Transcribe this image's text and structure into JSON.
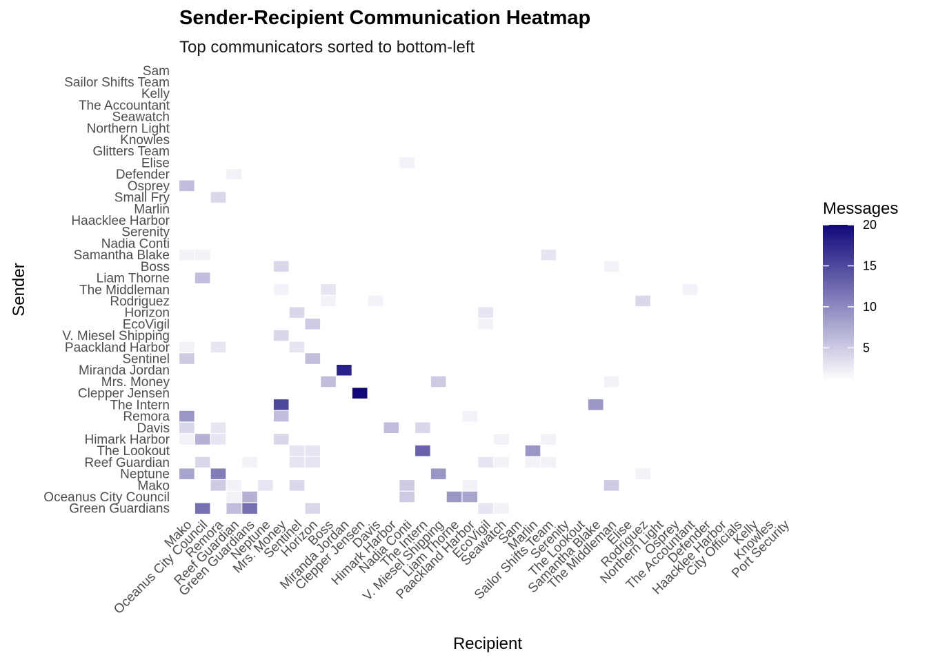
{
  "chart_data": {
    "type": "heatmap",
    "title": "Sender-Recipient Communication Heatmap",
    "subtitle": "Top communicators sorted to bottom-left",
    "xlabel": "Recipient",
    "ylabel": "Sender",
    "legend_title": "Messages",
    "legend_placement": "right",
    "legend_ticks": [
      5,
      10,
      15,
      20
    ],
    "color_range": [
      1,
      20
    ],
    "color_low": "#ffffff",
    "color_high": "#10087a",
    "grid": false,
    "x_categories": [
      "Mako",
      "Oceanus City Council",
      "Remora",
      "Reef Guardian",
      "Green Guardians",
      "Neptune",
      "Mrs. Money",
      "Sentinel",
      "Horizon",
      "Boss",
      "Miranda Jordan",
      "Clepper Jensen",
      "Davis",
      "Himark Harbor",
      "Nadia Conti",
      "The Intern",
      "V. Miesel Shipping",
      "Liam Thorne",
      "Paackland Harbor",
      "EcoVigil",
      "Seawatch",
      "Sam",
      "Marlin",
      "Sailor Shifts Team",
      "Serenity",
      "The Lookout",
      "Samantha Blake",
      "The Middleman",
      "Elise",
      "Rodriguez",
      "Northern Light",
      "Osprey",
      "The Accountant",
      "Defender",
      "Haacklee Harbor",
      "City Officials",
      "Kelly",
      "Knowles",
      "Port Security"
    ],
    "y_categories": [
      "Green Guardians",
      "Oceanus City Council",
      "Mako",
      "Neptune",
      "Reef Guardian",
      "The Lookout",
      "Himark Harbor",
      "Davis",
      "Remora",
      "The Intern",
      "Clepper Jensen",
      "Mrs. Money",
      "Miranda Jordan",
      "Sentinel",
      "Paackland Harbor",
      "V. Miesel Shipping",
      "EcoVigil",
      "Horizon",
      "Rodriguez",
      "The Middleman",
      "Liam Thorne",
      "Boss",
      "Samantha Blake",
      "Nadia Conti",
      "Serenity",
      "Haacklee Harbor",
      "Marlin",
      "Small Fry",
      "Osprey",
      "Defender",
      "Elise",
      "Glitters Team",
      "Knowles",
      "Northern Light",
      "Seawatch",
      "The Accountant",
      "Kelly",
      "Sailor Shifts Team",
      "Sam"
    ],
    "cells": [
      {
        "sender": "Green Guardians",
        "recipient": "Mako",
        "value": 1
      },
      {
        "sender": "Green Guardians",
        "recipient": "Oceanus City Council",
        "value": 12
      },
      {
        "sender": "Green Guardians",
        "recipient": "Reef Guardian",
        "value": 6
      },
      {
        "sender": "Green Guardians",
        "recipient": "Green Guardians",
        "value": 12
      },
      {
        "sender": "Green Guardians",
        "recipient": "Horizon",
        "value": 4
      },
      {
        "sender": "Green Guardians",
        "recipient": "EcoVigil",
        "value": 3
      },
      {
        "sender": "Green Guardians",
        "recipient": "Seawatch",
        "value": 2
      },
      {
        "sender": "Oceanus City Council",
        "recipient": "Mako",
        "value": 1
      },
      {
        "sender": "Oceanus City Council",
        "recipient": "Reef Guardian",
        "value": 2
      },
      {
        "sender": "Oceanus City Council",
        "recipient": "Green Guardians",
        "value": 7
      },
      {
        "sender": "Oceanus City Council",
        "recipient": "Nadia Conti",
        "value": 5
      },
      {
        "sender": "Oceanus City Council",
        "recipient": "Liam Thorne",
        "value": 9
      },
      {
        "sender": "Oceanus City Council",
        "recipient": "Paackland Harbor",
        "value": 8
      },
      {
        "sender": "Oceanus City Council",
        "recipient": "The Middleman",
        "value": 1
      },
      {
        "sender": "Mako",
        "recipient": "Remora",
        "value": 5
      },
      {
        "sender": "Mako",
        "recipient": "Reef Guardian",
        "value": 2
      },
      {
        "sender": "Mako",
        "recipient": "Neptune",
        "value": 3
      },
      {
        "sender": "Mako",
        "recipient": "Sentinel",
        "value": 4
      },
      {
        "sender": "Mako",
        "recipient": "Boss",
        "value": 1
      },
      {
        "sender": "Mako",
        "recipient": "Nadia Conti",
        "value": 5
      },
      {
        "sender": "Mako",
        "recipient": "Paackland Harbor",
        "value": 2
      },
      {
        "sender": "Mako",
        "recipient": "The Middleman",
        "value": 5
      },
      {
        "sender": "Mako",
        "recipient": "The Accountant",
        "value": 1
      },
      {
        "sender": "Neptune",
        "recipient": "Mako",
        "value": 8
      },
      {
        "sender": "Neptune",
        "recipient": "Remora",
        "value": 11
      },
      {
        "sender": "Neptune",
        "recipient": "Davis",
        "value": 1
      },
      {
        "sender": "Neptune",
        "recipient": "V. Miesel Shipping",
        "value": 9
      },
      {
        "sender": "Neptune",
        "recipient": "Rodriguez",
        "value": 2
      },
      {
        "sender": "Reef Guardian",
        "recipient": "Mako",
        "value": 1
      },
      {
        "sender": "Reef Guardian",
        "recipient": "Oceanus City Council",
        "value": 4
      },
      {
        "sender": "Reef Guardian",
        "recipient": "Green Guardians",
        "value": 2
      },
      {
        "sender": "Reef Guardian",
        "recipient": "Sentinel",
        "value": 3
      },
      {
        "sender": "Reef Guardian",
        "recipient": "Horizon",
        "value": 3
      },
      {
        "sender": "Reef Guardian",
        "recipient": "Paackland Harbor",
        "value": 1
      },
      {
        "sender": "Reef Guardian",
        "recipient": "EcoVigil",
        "value": 3
      },
      {
        "sender": "Reef Guardian",
        "recipient": "Seawatch",
        "value": 2
      },
      {
        "sender": "Reef Guardian",
        "recipient": "Marlin",
        "value": 2
      },
      {
        "sender": "Reef Guardian",
        "recipient": "Sailor Shifts Team",
        "value": 2
      },
      {
        "sender": "Reef Guardian",
        "recipient": "Haacklee Harbor",
        "value": 1
      },
      {
        "sender": "The Lookout",
        "recipient": "Neptune",
        "value": 1
      },
      {
        "sender": "The Lookout",
        "recipient": "Sentinel",
        "value": 3
      },
      {
        "sender": "The Lookout",
        "recipient": "Horizon",
        "value": 3
      },
      {
        "sender": "The Lookout",
        "recipient": "The Intern",
        "value": 13
      },
      {
        "sender": "The Lookout",
        "recipient": "Marlin",
        "value": 9
      },
      {
        "sender": "Himark Harbor",
        "recipient": "Mako",
        "value": 2
      },
      {
        "sender": "Himark Harbor",
        "recipient": "Oceanus City Council",
        "value": 7
      },
      {
        "sender": "Himark Harbor",
        "recipient": "Remora",
        "value": 3
      },
      {
        "sender": "Himark Harbor",
        "recipient": "Mrs. Money",
        "value": 4
      },
      {
        "sender": "Himark Harbor",
        "recipient": "Seawatch",
        "value": 2
      },
      {
        "sender": "Himark Harbor",
        "recipient": "Marlin",
        "value": 1
      },
      {
        "sender": "Himark Harbor",
        "recipient": "Sailor Shifts Team",
        "value": 2
      },
      {
        "sender": "Davis",
        "recipient": "Mako",
        "value": 4
      },
      {
        "sender": "Davis",
        "recipient": "Remora",
        "value": 3
      },
      {
        "sender": "Davis",
        "recipient": "Himark Harbor",
        "value": 6
      },
      {
        "sender": "Davis",
        "recipient": "The Intern",
        "value": 4
      },
      {
        "sender": "Davis",
        "recipient": "V. Miesel Shipping",
        "value": 1
      },
      {
        "sender": "Remora",
        "recipient": "Mako",
        "value": 9
      },
      {
        "sender": "Remora",
        "recipient": "Mrs. Money",
        "value": 6
      },
      {
        "sender": "Remora",
        "recipient": "Paackland Harbor",
        "value": 2
      },
      {
        "sender": "Remora",
        "recipient": "Sailor Shifts Team",
        "value": 1
      },
      {
        "sender": "The Intern",
        "recipient": "Mrs. Money",
        "value": 15
      },
      {
        "sender": "The Intern",
        "recipient": "Samantha Blake",
        "value": 9
      },
      {
        "sender": "Clepper Jensen",
        "recipient": "Clepper Jensen",
        "value": 20
      },
      {
        "sender": "Mrs. Money",
        "recipient": "Mrs. Money",
        "value": 1
      },
      {
        "sender": "Mrs. Money",
        "recipient": "Boss",
        "value": 6
      },
      {
        "sender": "Mrs. Money",
        "recipient": "V. Miesel Shipping",
        "value": 5
      },
      {
        "sender": "Mrs. Money",
        "recipient": "The Middleman",
        "value": 2
      },
      {
        "sender": "Miranda Jordan",
        "recipient": "Miranda Jordan",
        "value": 18
      },
      {
        "sender": "Sentinel",
        "recipient": "Mako",
        "value": 5
      },
      {
        "sender": "Sentinel",
        "recipient": "Oceanus City Council",
        "value": 1
      },
      {
        "sender": "Sentinel",
        "recipient": "Green Guardians",
        "value": 1
      },
      {
        "sender": "Sentinel",
        "recipient": "Horizon",
        "value": 6
      },
      {
        "sender": "Paackland Harbor",
        "recipient": "Mako",
        "value": 2
      },
      {
        "sender": "Paackland Harbor",
        "recipient": "Oceanus City Council",
        "value": 1
      },
      {
        "sender": "Paackland Harbor",
        "recipient": "Remora",
        "value": 3
      },
      {
        "sender": "Paackland Harbor",
        "recipient": "Reef Guardian",
        "value": 1
      },
      {
        "sender": "Paackland Harbor",
        "recipient": "Sentinel",
        "value": 3
      },
      {
        "sender": "V. Miesel Shipping",
        "recipient": "Remora",
        "value": 1
      },
      {
        "sender": "V. Miesel Shipping",
        "recipient": "Mrs. Money",
        "value": 4
      },
      {
        "sender": "V. Miesel Shipping",
        "recipient": "Liam Thorne",
        "value": 1
      },
      {
        "sender": "EcoVigil",
        "recipient": "Reef Guardian",
        "value": 1
      },
      {
        "sender": "EcoVigil",
        "recipient": "Sentinel",
        "value": 1
      },
      {
        "sender": "EcoVigil",
        "recipient": "Horizon",
        "value": 5
      },
      {
        "sender": "EcoVigil",
        "recipient": "Liam Thorne",
        "value": 1
      },
      {
        "sender": "EcoVigil",
        "recipient": "EcoVigil",
        "value": 2
      },
      {
        "sender": "Horizon",
        "recipient": "Green Guardians",
        "value": 1
      },
      {
        "sender": "Horizon",
        "recipient": "Sentinel",
        "value": 4
      },
      {
        "sender": "Horizon",
        "recipient": "EcoVigil",
        "value": 3
      },
      {
        "sender": "Horizon",
        "recipient": "Seawatch",
        "value": 1
      },
      {
        "sender": "Rodriguez",
        "recipient": "Boss",
        "value": 2
      },
      {
        "sender": "Rodriguez",
        "recipient": "Davis",
        "value": 2
      },
      {
        "sender": "Rodriguez",
        "recipient": "Rodriguez",
        "value": 4
      },
      {
        "sender": "The Middleman",
        "recipient": "Mrs. Money",
        "value": 2
      },
      {
        "sender": "The Middleman",
        "recipient": "Boss",
        "value": 3
      },
      {
        "sender": "The Middleman",
        "recipient": "Liam Thorne",
        "value": 1
      },
      {
        "sender": "The Middleman",
        "recipient": "The Accountant",
        "value": 2
      },
      {
        "sender": "Liam Thorne",
        "recipient": "Oceanus City Council",
        "value": 6
      },
      {
        "sender": "Liam Thorne",
        "recipient": "Nadia Conti",
        "value": 1
      },
      {
        "sender": "Boss",
        "recipient": "Mrs. Money",
        "value": 4
      },
      {
        "sender": "Boss",
        "recipient": "The Middleman",
        "value": 2
      },
      {
        "sender": "Samantha Blake",
        "recipient": "Mako",
        "value": 2
      },
      {
        "sender": "Samantha Blake",
        "recipient": "Oceanus City Council",
        "value": 2
      },
      {
        "sender": "Samantha Blake",
        "recipient": "Sailor Shifts Team",
        "value": 3
      },
      {
        "sender": "Nadia Conti",
        "recipient": "Neptune",
        "value": 1
      },
      {
        "sender": "Nadia Conti",
        "recipient": "Liam Thorne",
        "value": 1
      },
      {
        "sender": "Serenity",
        "recipient": "Mako",
        "value": 1
      },
      {
        "sender": "Serenity",
        "recipient": "Reef Guardian",
        "value": 1
      },
      {
        "sender": "Serenity",
        "recipient": "Neptune",
        "value": 1
      },
      {
        "sender": "Serenity",
        "recipient": "Himark Harbor",
        "value": 1
      },
      {
        "sender": "Haacklee Harbor",
        "recipient": "Oceanus City Council",
        "value": 1
      },
      {
        "sender": "Marlin",
        "recipient": "Remora",
        "value": 1
      },
      {
        "sender": "Marlin",
        "recipient": "Himark Harbor",
        "value": 1
      },
      {
        "sender": "Small Fry",
        "recipient": "Remora",
        "value": 4
      },
      {
        "sender": "Small Fry",
        "recipient": "Davis",
        "value": 1
      },
      {
        "sender": "Osprey",
        "recipient": "Mako",
        "value": 6
      },
      {
        "sender": "Defender",
        "recipient": "Reef Guardian",
        "value": 2
      },
      {
        "sender": "Elise",
        "recipient": "Nadia Conti",
        "value": 2
      },
      {
        "sender": "Knowles",
        "recipient": "Davis",
        "value": 1
      },
      {
        "sender": "The Accountant",
        "recipient": "Boss",
        "value": 1
      },
      {
        "sender": "Kelly",
        "recipient": "Sam",
        "value": 1
      }
    ]
  }
}
